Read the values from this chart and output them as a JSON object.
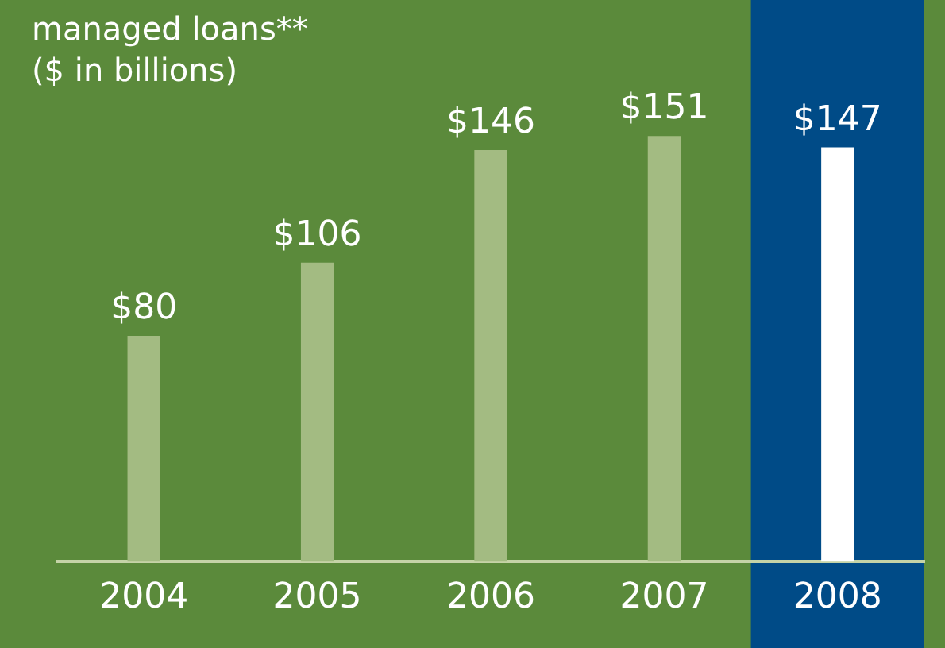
{
  "chart_data": {
    "type": "bar",
    "title": "managed loans**",
    "subtitle": "($ in billions)",
    "categories": [
      "2004",
      "2005",
      "2006",
      "2007",
      "2008"
    ],
    "values": [
      80,
      106,
      146,
      151,
      147
    ],
    "colors": [
      "#a3bb82",
      "#a3bb82",
      "#a3bb82",
      "#a3bb82",
      "#ffffff"
    ],
    "value_labels": [
      "$80",
      "$106",
      "$146",
      "$151",
      "$147"
    ],
    "bands": [
      {
        "axis": "x",
        "from": "2008",
        "to": "2008",
        "color": "#004b87"
      }
    ],
    "grid": false,
    "legend": false
  }
}
